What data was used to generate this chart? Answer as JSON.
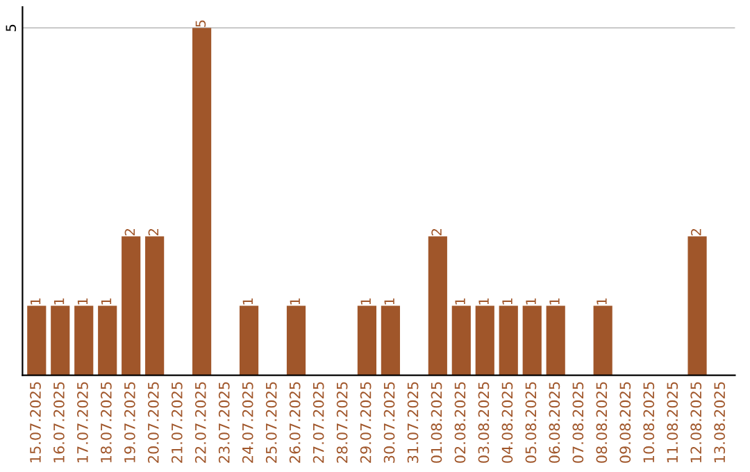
{
  "chart_data": {
    "type": "bar",
    "categories": [
      "15.07.2025",
      "16.07.2025",
      "17.07.2025",
      "18.07.2025",
      "19.07.2025",
      "20.07.2025",
      "21.07.2025",
      "22.07.2025",
      "23.07.2025",
      "24.07.2025",
      "25.07.2025",
      "26.07.2025",
      "27.07.2025",
      "28.07.2025",
      "29.07.2025",
      "30.07.2025",
      "31.07.2025",
      "01.08.2025",
      "02.08.2025",
      "03.08.2025",
      "04.08.2025",
      "05.08.2025",
      "06.08.2025",
      "07.08.2025",
      "08.08.2025",
      "09.08.2025",
      "10.08.2025",
      "11.08.2025",
      "12.08.2025",
      "13.08.2025"
    ],
    "values": [
      1,
      1,
      1,
      1,
      2,
      2,
      0,
      5,
      0,
      1,
      0,
      1,
      0,
      0,
      1,
      1,
      0,
      2,
      1,
      1,
      1,
      1,
      1,
      0,
      1,
      0,
      0,
      0,
      2,
      0
    ],
    "value_labels": [
      "1",
      "1",
      "1",
      "1",
      "2",
      "2",
      null,
      "5",
      null,
      "1",
      null,
      "1",
      null,
      null,
      "1",
      "1",
      null,
      "2",
      "1",
      "1",
      "1",
      "1",
      "1",
      null,
      "1",
      null,
      null,
      null,
      "2",
      null
    ],
    "color": "#a0562a",
    "ylim": [
      0,
      5.3
    ],
    "yticks": [
      5
    ],
    "grid": "y",
    "legend": false
  }
}
